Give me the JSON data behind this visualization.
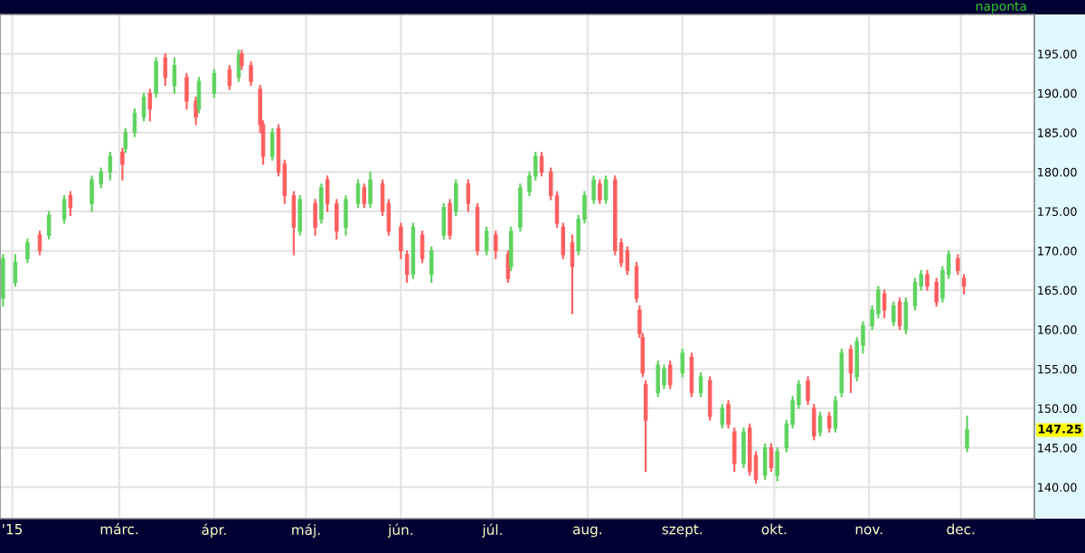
{
  "chart_data": {
    "type": "candlestick",
    "annotations": [
      "naponta",
      "147.25"
    ],
    "x": [
      "2015-01-22",
      "2015-01-26",
      "2015-01-30",
      "2015-02-03",
      "2015-02-06",
      "2015-02-11",
      "2015-02-13",
      "2015-02-20",
      "2015-02-23",
      "2015-02-26",
      "2015-03-02",
      "2015-03-03",
      "2015-03-06",
      "2015-03-09",
      "2015-03-11",
      "2015-03-13",
      "2015-03-16",
      "2015-03-19",
      "2015-03-23",
      "2015-03-26",
      "2015-03-27",
      "2015-04-01",
      "2015-04-06",
      "2015-04-09",
      "2015-04-10",
      "2015-04-13",
      "2015-04-16",
      "2015-04-17",
      "2015-04-20",
      "2015-04-22",
      "2015-04-24",
      "2015-04-27",
      "2015-04-29",
      "2015-05-04",
      "2015-05-06",
      "2015-05-08",
      "2015-05-11",
      "2015-05-14",
      "2015-05-18",
      "2015-05-20",
      "2015-05-22",
      "2015-05-26",
      "2015-05-28",
      "2015-06-01",
      "2015-06-03",
      "2015-06-05",
      "2015-06-08",
      "2015-06-11",
      "2015-06-15",
      "2015-06-17",
      "2015-06-19",
      "2015-06-23",
      "2015-06-26",
      "2015-06-29",
      "2015-07-02",
      "2015-07-06",
      "2015-07-07",
      "2015-07-10",
      "2015-07-13",
      "2015-07-15",
      "2015-07-17",
      "2015-07-20",
      "2015-07-22",
      "2015-07-24",
      "2015-07-27",
      "2015-07-29",
      "2015-07-31",
      "2015-08-03",
      "2015-08-05",
      "2015-08-07",
      "2015-08-10",
      "2015-08-12",
      "2015-08-14",
      "2015-08-17",
      "2015-08-18",
      "2015-08-19",
      "2015-08-20",
      "2015-08-24",
      "2015-08-26",
      "2015-08-28",
      "2015-09-01",
      "2015-09-04",
      "2015-09-07",
      "2015-09-10",
      "2015-09-14",
      "2015-09-16",
      "2015-09-18",
      "2015-09-21",
      "2015-09-23",
      "2015-09-25",
      "2015-09-28",
      "2015-09-30",
      "2015-10-02",
      "2015-10-05",
      "2015-10-07",
      "2015-10-09",
      "2015-10-12",
      "2015-10-14",
      "2015-10-16",
      "2015-10-19",
      "2015-10-21",
      "2015-10-23",
      "2015-10-26",
      "2015-10-28",
      "2015-10-30",
      "2015-11-02",
      "2015-11-04",
      "2015-11-06",
      "2015-11-09",
      "2015-11-11",
      "2015-11-13",
      "2015-11-16",
      "2015-11-18",
      "2015-11-20",
      "2015-11-23",
      "2015-11-25",
      "2015-11-27",
      "2015-11-30",
      "2015-12-02",
      "2015-12-03"
    ],
    "ohlc": [
      [
        164,
        169.5,
        163,
        169
      ],
      [
        166,
        169.5,
        165.5,
        168.5
      ],
      [
        169,
        171.5,
        168.5,
        171
      ],
      [
        172,
        172.5,
        169.5,
        170
      ],
      [
        172,
        175,
        171.5,
        174.5
      ],
      [
        174,
        177,
        173.5,
        176.5
      ],
      [
        177,
        177.5,
        174.5,
        175.5
      ],
      [
        176,
        179.5,
        175,
        179
      ],
      [
        178.5,
        180.5,
        178,
        180
      ],
      [
        180,
        182.5,
        179,
        182
      ],
      [
        182.5,
        183,
        179,
        181
      ],
      [
        183,
        185.5,
        182.5,
        185
      ],
      [
        185,
        188,
        184.5,
        187.5
      ],
      [
        187,
        190,
        186.5,
        189.5
      ],
      [
        190,
        190.5,
        186.5,
        188
      ],
      [
        190,
        194.5,
        189.5,
        194
      ],
      [
        194.5,
        195,
        191,
        192
      ],
      [
        191,
        194.5,
        190,
        193.5
      ],
      [
        192,
        192.5,
        188,
        189
      ],
      [
        189,
        189.5,
        186,
        187
      ],
      [
        188,
        192,
        187.5,
        191.5
      ],
      [
        190,
        193,
        189.5,
        192.5
      ],
      [
        193,
        193.5,
        190.5,
        191
      ],
      [
        192,
        195.5,
        191.5,
        195
      ],
      [
        195,
        195.5,
        193,
        193.5
      ],
      [
        193.5,
        194,
        191,
        191.5
      ],
      [
        190.5,
        191,
        185,
        186
      ],
      [
        186,
        186.5,
        181,
        182
      ],
      [
        182,
        185.5,
        181.5,
        185
      ],
      [
        185.5,
        186,
        179.5,
        180
      ],
      [
        181,
        181.5,
        176,
        177
      ],
      [
        177,
        177.5,
        169.5,
        173
      ],
      [
        172.5,
        177,
        172,
        176.5
      ],
      [
        176,
        176.5,
        172,
        173
      ],
      [
        174,
        178.5,
        173.5,
        178
      ],
      [
        179,
        179.5,
        175,
        176
      ],
      [
        176,
        176.5,
        171.5,
        172.5
      ],
      [
        173,
        177,
        172,
        176.5
      ],
      [
        176,
        179,
        175.5,
        178.5
      ],
      [
        178,
        178.5,
        175.5,
        176
      ],
      [
        176,
        180,
        175.5,
        179
      ],
      [
        178.5,
        179,
        174.5,
        175
      ],
      [
        176,
        176.5,
        172,
        172.5
      ],
      [
        173,
        173.5,
        169,
        170
      ],
      [
        169.5,
        170,
        166,
        167
      ],
      [
        167,
        173.5,
        166.5,
        173
      ],
      [
        172,
        172.5,
        168.5,
        169
      ],
      [
        167,
        170.5,
        166,
        170
      ],
      [
        172,
        176,
        171.5,
        175.5
      ],
      [
        176,
        176.5,
        171.5,
        172
      ],
      [
        175,
        179,
        174.5,
        178.5
      ],
      [
        178.5,
        179,
        175,
        176
      ],
      [
        175.5,
        176,
        169.5,
        170
      ],
      [
        170,
        173,
        169.5,
        172.5
      ],
      [
        172,
        172.5,
        169,
        170
      ],
      [
        169.5,
        170,
        166,
        166.5
      ],
      [
        168,
        173,
        167.5,
        172.5
      ],
      [
        173,
        178.5,
        172.5,
        178
      ],
      [
        177.5,
        180,
        177,
        179.5
      ],
      [
        179.5,
        182.5,
        179,
        182
      ],
      [
        182,
        182.5,
        179.5,
        180
      ],
      [
        180,
        180.5,
        176.5,
        177
      ],
      [
        177,
        177.5,
        173,
        173.5
      ],
      [
        173,
        173.5,
        169,
        169.5
      ],
      [
        171,
        172,
        162,
        168
      ],
      [
        170,
        174.5,
        169.5,
        174
      ],
      [
        174,
        177.5,
        173.5,
        177
      ],
      [
        176.5,
        179.5,
        176,
        179
      ],
      [
        178.5,
        179,
        176,
        176.5
      ],
      [
        176.5,
        179.5,
        176,
        179
      ],
      [
        179,
        179.5,
        169.5,
        170
      ],
      [
        171,
        171.5,
        168,
        168.5
      ],
      [
        170,
        170.5,
        167,
        167.5
      ],
      [
        168,
        168.5,
        163.5,
        164
      ],
      [
        162.5,
        163,
        159,
        159.5
      ],
      [
        159,
        159.5,
        154,
        154.5
      ],
      [
        153,
        153.5,
        142,
        148.5
      ],
      [
        152,
        156,
        151.5,
        155.5
      ],
      [
        153,
        155.5,
        152.5,
        155
      ],
      [
        155.5,
        156,
        152.5,
        153
      ],
      [
        154.5,
        157.5,
        154,
        157
      ],
      [
        156.5,
        157,
        151.5,
        152
      ],
      [
        152,
        154.5,
        151.5,
        154
      ],
      [
        153.5,
        154,
        148.5,
        149
      ],
      [
        148,
        150.5,
        147.5,
        150
      ],
      [
        150.5,
        151,
        147.5,
        148
      ],
      [
        147,
        147.5,
        142,
        143
      ],
      [
        143,
        147.5,
        142.5,
        147
      ],
      [
        147.5,
        148,
        141.5,
        142
      ],
      [
        144,
        144.5,
        140.5,
        141
      ],
      [
        141.5,
        145.5,
        141,
        145
      ],
      [
        145,
        145.5,
        142,
        142.5
      ],
      [
        141.5,
        145,
        140.8,
        144.5
      ],
      [
        145,
        148.5,
        144.5,
        148
      ],
      [
        148,
        151.5,
        147.5,
        151
      ],
      [
        150.5,
        153.5,
        150,
        153
      ],
      [
        153.5,
        154,
        150.5,
        151
      ],
      [
        150,
        150.5,
        146,
        146.5
      ],
      [
        147,
        149.5,
        146.5,
        149
      ],
      [
        149,
        149.5,
        147,
        147.5
      ],
      [
        147.5,
        151.5,
        147,
        151
      ],
      [
        152,
        157.5,
        151.5,
        157
      ],
      [
        157.5,
        158,
        152,
        154.5
      ],
      [
        154,
        159,
        153.5,
        158.5
      ],
      [
        158,
        161,
        157,
        160.5
      ],
      [
        160.5,
        163,
        160,
        162.5
      ],
      [
        162,
        165.5,
        161.5,
        165
      ],
      [
        164.5,
        165,
        161.5,
        162.5
      ],
      [
        161,
        163.5,
        160.5,
        163
      ],
      [
        163.5,
        164,
        160,
        160.5
      ],
      [
        160,
        164,
        159.5,
        163.5
      ],
      [
        163,
        166.5,
        162.5,
        166
      ],
      [
        165.5,
        167.5,
        165,
        167
      ],
      [
        167,
        167.5,
        165,
        165.5
      ],
      [
        166,
        166.5,
        163,
        163.5
      ],
      [
        164,
        168,
        163.5,
        167.5
      ],
      [
        167,
        170,
        166.5,
        169.5
      ],
      [
        169,
        169.5,
        167,
        167.5
      ],
      [
        166.5,
        167,
        164.5,
        165.5
      ],
      [
        145,
        149,
        144.5,
        147.25
      ]
    ],
    "colors": [
      "#5fd35f",
      "#5fd35f",
      "#5fd35f",
      "#ff5f5f",
      "#5fd35f",
      "#5fd35f",
      "#ff5f5f",
      "#5fd35f",
      "#5fd35f",
      "#5fd35f",
      "#ff5f5f",
      "#5fd35f",
      "#5fd35f",
      "#5fd35f",
      "#ff5f5f",
      "#5fd35f",
      "#ff5f5f",
      "#5fd35f",
      "#ff5f5f",
      "#ff5f5f",
      "#5fd35f",
      "#5fd35f",
      "#ff5f5f",
      "#5fd35f",
      "#ff5f5f",
      "#ff5f5f",
      "#ff5f5f",
      "#ff5f5f",
      "#5fd35f",
      "#ff5f5f",
      "#ff5f5f",
      "#ff5f5f",
      "#5fd35f",
      "#ff5f5f",
      "#5fd35f",
      "#ff5f5f",
      "#ff5f5f",
      "#5fd35f",
      "#5fd35f",
      "#ff5f5f",
      "#5fd35f",
      "#ff5f5f",
      "#ff5f5f",
      "#ff5f5f",
      "#ff5f5f",
      "#5fd35f",
      "#ff5f5f",
      "#5fd35f",
      "#5fd35f",
      "#ff5f5f",
      "#5fd35f",
      "#ff5f5f",
      "#ff5f5f",
      "#5fd35f",
      "#ff5f5f",
      "#ff5f5f",
      "#5fd35f",
      "#5fd35f",
      "#5fd35f",
      "#5fd35f",
      "#ff5f5f",
      "#ff5f5f",
      "#ff5f5f",
      "#ff5f5f",
      "#ff5f5f",
      "#5fd35f",
      "#5fd35f",
      "#5fd35f",
      "#ff5f5f",
      "#5fd35f",
      "#ff5f5f",
      "#ff5f5f",
      "#ff5f5f",
      "#ff5f5f",
      "#ff5f5f",
      "#ff5f5f",
      "#ff5f5f",
      "#5fd35f",
      "#5fd35f",
      "#ff5f5f",
      "#5fd35f",
      "#ff5f5f",
      "#5fd35f",
      "#ff5f5f",
      "#5fd35f",
      "#ff5f5f",
      "#ff5f5f",
      "#5fd35f",
      "#ff5f5f",
      "#ff5f5f",
      "#5fd35f",
      "#ff5f5f",
      "#5fd35f",
      "#5fd35f",
      "#5fd35f",
      "#5fd35f",
      "#ff5f5f",
      "#ff5f5f",
      "#5fd35f",
      "#ff5f5f",
      "#5fd35f",
      "#5fd35f",
      "#ff5f5f",
      "#5fd35f",
      "#5fd35f",
      "#5fd35f",
      "#5fd35f",
      "#ff5f5f",
      "#5fd35f",
      "#ff5f5f",
      "#5fd35f",
      "#5fd35f",
      "#5fd35f",
      "#ff5f5f",
      "#ff5f5f",
      "#5fd35f",
      "#5fd35f",
      "#ff5f5f",
      "#ff5f5f",
      "#5fd35f"
    ],
    "xlim": [
      "2015-01-21",
      "2015-12-25"
    ],
    "xticks": [
      {
        "value": "2015-01-25",
        "label": "'15"
      },
      {
        "value": "2015-03-01",
        "label": "márc."
      },
      {
        "value": "2015-04-01",
        "label": "ápr."
      },
      {
        "value": "2015-05-01",
        "label": "máj."
      },
      {
        "value": "2015-06-01",
        "label": "jún."
      },
      {
        "value": "2015-07-01",
        "label": "júl."
      },
      {
        "value": "2015-08-01",
        "label": "aug."
      },
      {
        "value": "2015-09-01",
        "label": "szept."
      },
      {
        "value": "2015-10-01",
        "label": "okt."
      },
      {
        "value": "2015-11-01",
        "label": "nov."
      },
      {
        "value": "2015-12-01",
        "label": "dec."
      }
    ],
    "ylim": [
      136,
      200
    ],
    "yticks": [
      {
        "value": 140,
        "label": "140.00"
      },
      {
        "value": 145,
        "label": "145.00"
      },
      {
        "value": 150,
        "label": "150.00"
      },
      {
        "value": 155,
        "label": "155.00"
      },
      {
        "value": 160,
        "label": "160.00"
      },
      {
        "value": 165,
        "label": "165.00"
      },
      {
        "value": 170,
        "label": "170.00"
      },
      {
        "value": 175,
        "label": "175.00"
      },
      {
        "value": 180,
        "label": "180.00"
      },
      {
        "value": 185,
        "label": "185.00"
      },
      {
        "value": 190,
        "label": "190.00"
      },
      {
        "value": 195,
        "label": "195.00"
      }
    ],
    "grid": true
  }
}
